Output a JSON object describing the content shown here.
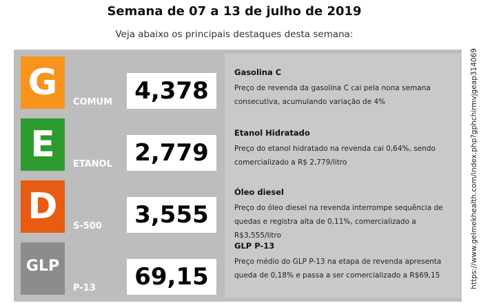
{
  "header": {
    "title": "Semana de 07 a 13 de julho de 2019",
    "subtitle": "Veja abaixo os principais destaques desta semana:"
  },
  "rows": [
    {
      "badge": "G",
      "fuel": "COMUM",
      "price": "4,378",
      "color": "#f7941d"
    },
    {
      "badge": "E",
      "fuel": "ETANOL",
      "price": "2,779",
      "color": "#2e9b2e"
    },
    {
      "badge": "D",
      "fuel": "S-500",
      "price": "3,555",
      "color": "#e85b12"
    },
    {
      "badge": "GLP",
      "fuel": "P-13",
      "price": "69,15",
      "color": "#8c8c8c"
    }
  ],
  "highlights": [
    {
      "title": "Gasolina C",
      "text": "Preço de revenda da gasolina C cai pela nona semana consecutiva, acumulando variação de 4%"
    },
    {
      "title": "Etanol Hidratado",
      "text": "Preço do etanol hidratado na revenda cai 0,64%, sendo comercializado a R$ 2,779/litro"
    },
    {
      "title": "Óleo diesel",
      "text": "Preço do óleo diesel na revenda interrompe sequência de quedas e registra alta de 0,11%, comercializado a R$3,555/litro"
    },
    {
      "title": "GLP P-13",
      "text": "Preço médio do GLP P-13 na etapa de revenda apresenta queda de 0,18% e passa a ser comercializado a R$69,15"
    }
  ],
  "side_url": "https://www.gelmekhealth.com/index.php?gphchirmvjgeap314069"
}
